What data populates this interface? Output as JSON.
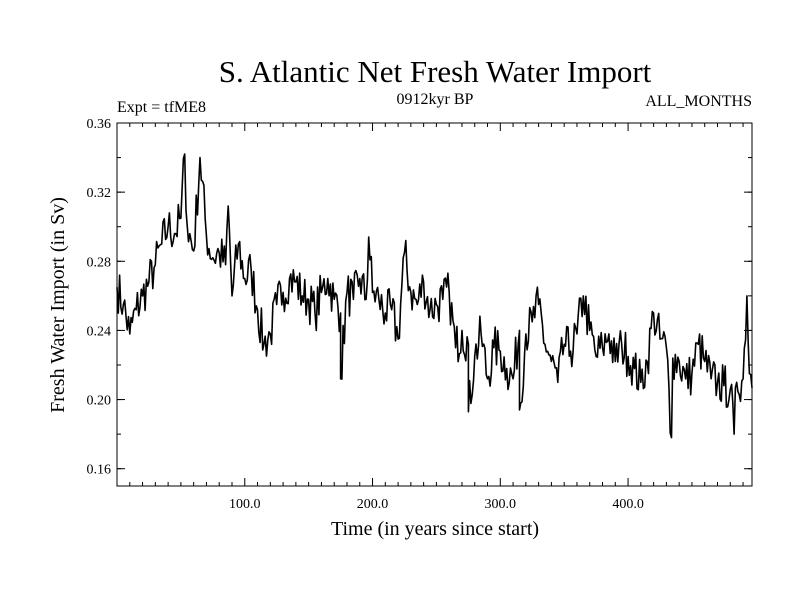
{
  "chart_data": {
    "type": "line",
    "title": "S. Atlantic Net Fresh Water Import",
    "subtitle_left": "Expt = tfME8",
    "subtitle_center": "0912kyr BP",
    "subtitle_right": "ALL_MONTHS",
    "xlabel": "Time (in years since start)",
    "ylabel": "Fresh Water Import (in Sv)",
    "xlim": [
      0,
      497
    ],
    "ylim": [
      0.15,
      0.36
    ],
    "x_ticks": [
      100,
      200,
      300,
      400
    ],
    "x_tick_labels": [
      "100.0",
      "200.0",
      "300.0",
      "400.0"
    ],
    "y_ticks": [
      0.16,
      0.2,
      0.24,
      0.28,
      0.32,
      0.36
    ],
    "y_tick_labels": [
      "0.16",
      "0.20",
      "0.24",
      "0.28",
      "0.32",
      "0.36"
    ],
    "grid": false,
    "series": [
      {
        "name": "Fresh Water Import",
        "x_start": 0,
        "x_step": 5,
        "values": [
          0.265,
          0.255,
          0.238,
          0.252,
          0.26,
          0.268,
          0.278,
          0.29,
          0.3,
          0.296,
          0.305,
          0.3,
          0.286,
          0.34,
          0.295,
          0.282,
          0.285,
          0.278,
          0.26,
          0.29,
          0.27,
          0.275,
          0.252,
          0.232,
          0.238,
          0.255,
          0.262,
          0.27,
          0.268,
          0.26,
          0.258,
          0.25,
          0.262,
          0.27,
          0.258,
          0.25,
          0.262,
          0.258,
          0.27,
          0.258,
          0.262,
          0.258,
          0.25,
          0.252,
          0.235,
          0.285,
          0.262,
          0.255,
          0.268,
          0.252,
          0.255,
          0.258,
          0.262,
          0.23,
          0.24,
          0.232,
          0.225,
          0.238,
          0.212,
          0.23,
          0.228,
          0.218,
          0.212,
          0.24,
          0.238,
          0.245,
          0.255,
          0.232,
          0.222,
          0.21,
          0.232,
          0.228,
          0.238,
          0.26,
          0.24,
          0.225,
          0.23,
          0.238,
          0.222,
          0.232,
          0.225,
          0.218,
          0.21,
          0.222,
          0.25,
          0.235,
          0.23,
          0.224,
          0.222,
          0.212,
          0.215,
          0.232,
          0.222,
          0.212,
          0.21,
          0.208,
          0.206,
          0.21,
          0.212,
          0.215
        ]
      }
    ],
    "notable_points": [
      {
        "x": 53,
        "y": 0.342
      },
      {
        "x": 87,
        "y": 0.312
      },
      {
        "x": 175,
        "y": 0.212
      },
      {
        "x": 197,
        "y": 0.294
      },
      {
        "x": 275,
        "y": 0.193
      },
      {
        "x": 315,
        "y": 0.194
      },
      {
        "x": 434,
        "y": 0.178
      },
      {
        "x": 483,
        "y": 0.18
      },
      {
        "x": 493,
        "y": 0.26
      }
    ]
  }
}
